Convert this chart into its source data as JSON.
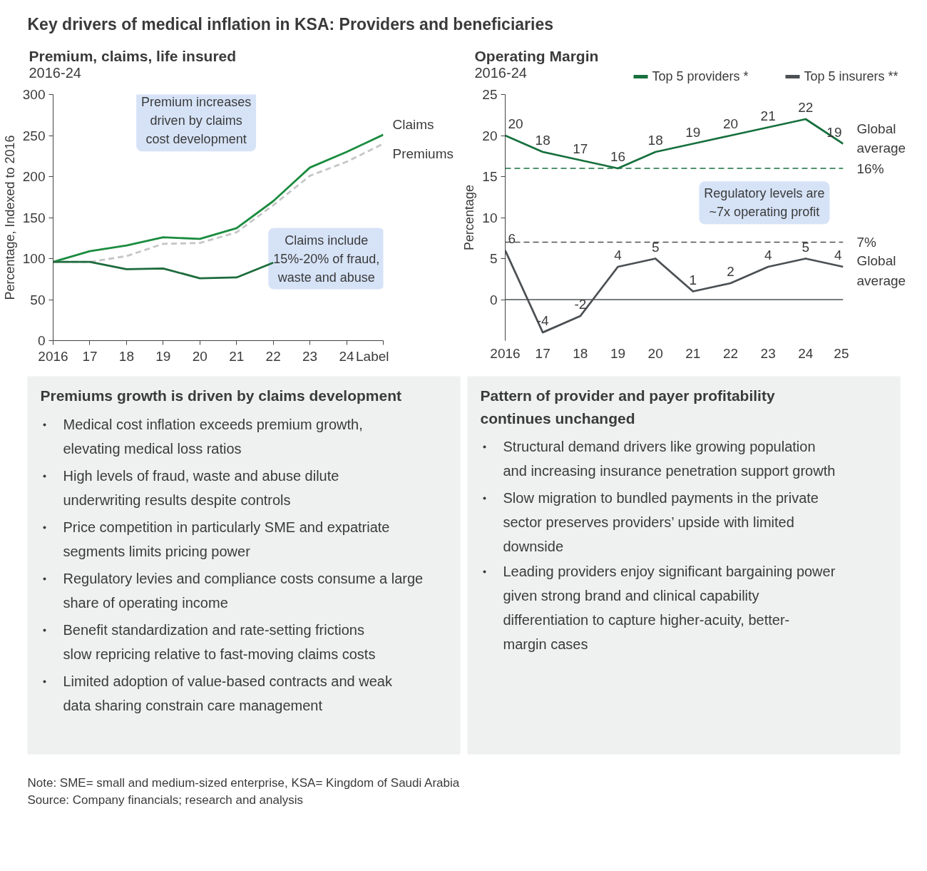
{
  "chart_data": [
    {
      "type": "other",
      "title": "Key drivers of medical inflation in KSA: Providers and beneficiaries"
    },
    {
      "type": "line",
      "title": "Premium, claims, life insured",
      "subtitle": "2016-24",
      "ylabel": "Percentage, Indexed to 2016",
      "x": [
        2016,
        2017,
        2018,
        2019,
        2020,
        2021,
        2022,
        2023,
        2024,
        2025
      ],
      "xlim": [
        2016,
        2025
      ],
      "xticks": [
        {
          "value": 2016,
          "label": "2016"
        },
        {
          "value": 2017,
          "label": "17"
        },
        {
          "value": 2018,
          "label": "18"
        },
        {
          "value": 2019,
          "label": "19"
        },
        {
          "value": 2020,
          "label": "20"
        },
        {
          "value": 2021,
          "label": "21"
        },
        {
          "value": 2022,
          "label": "22"
        },
        {
          "value": 2023,
          "label": "23"
        },
        {
          "value": 2024,
          "label": "24"
        },
        {
          "value": 2025,
          "label": "Label"
        }
      ],
      "ylim": [
        0,
        300
      ],
      "yticks": [
        0,
        50,
        100,
        150,
        200,
        250,
        300
      ],
      "series": [
        {
          "name": "Claims",
          "color": "#1a8c3f",
          "values": [
            96,
            109,
            116,
            126,
            124,
            137,
            170,
            211,
            230,
            251
          ]
        },
        {
          "name": "Premiums",
          "color": "#c6c6c6",
          "line_style": "dashed",
          "values": [
            96,
            96,
            103,
            118,
            119,
            132,
            165,
            201,
            218,
            240
          ]
        },
        {
          "color": "#1d6b3c",
          "values": [
            96,
            96,
            87,
            88,
            76,
            77,
            95,
            null,
            null,
            null
          ]
        }
      ],
      "annotations": [
        "Premium increases driven by claims cost development",
        "Claims include 15%-20% of fraud, waste and abuse"
      ],
      "grid": false
    },
    {
      "type": "line",
      "title": "Operating Margin",
      "subtitle": "2016-24",
      "ylabel": "Percentage",
      "x": [
        2016,
        2017,
        2018,
        2019,
        2020,
        2021,
        2022,
        2023,
        2024,
        2025
      ],
      "xlim": [
        2016,
        2025
      ],
      "xticks": [
        {
          "value": 2016,
          "label": "2016"
        },
        {
          "value": 2017,
          "label": "17"
        },
        {
          "value": 2018,
          "label": "18"
        },
        {
          "value": 2019,
          "label": "19"
        },
        {
          "value": 2020,
          "label": "20"
        },
        {
          "value": 2021,
          "label": "21"
        },
        {
          "value": 2022,
          "label": "22"
        },
        {
          "value": 2023,
          "label": "23"
        },
        {
          "value": 2024,
          "label": "24"
        },
        {
          "value": 2025,
          "label": "25"
        }
      ],
      "ylim": [
        -5,
        25
      ],
      "yticks": [
        0,
        5,
        10,
        15,
        20,
        25
      ],
      "series": [
        {
          "name": "Top 5 providers *",
          "color": "#17703d",
          "values": [
            20,
            18,
            17,
            16,
            18,
            19,
            20,
            21,
            22,
            19
          ]
        },
        {
          "name": "Top 5 insurers **",
          "color": "#4b5054",
          "values": [
            6,
            -4,
            -2,
            4,
            5,
            1,
            2,
            4,
            5,
            4
          ]
        }
      ],
      "data_labels": true,
      "legend": "top right",
      "grid": false,
      "ref_lines": [
        {
          "axis": "y",
          "value": 16,
          "label": "16%",
          "color": "#17703d",
          "line_style": "dashed"
        },
        {
          "axis": "y",
          "value": 7,
          "label": "7%",
          "color": "#4b5054",
          "line_style": "dashed"
        },
        {
          "axis": "y",
          "value": 0,
          "color": "#4b5054",
          "line_style": "solid"
        }
      ],
      "annotations": [
        "Global average",
        "Global average",
        "Regulatory levels are ~7x operating profit"
      ]
    },
    {
      "type": "other",
      "title": "Premiums growth is driven by claims development",
      "annotations": [
        "Medical cost inflation exceeds premium growth, elevating medical loss ratios",
        "High levels of fraud, waste and abuse dilute underwriting results despite controls",
        "Price competition in particularly SME and expatriate segments limits pricing power",
        "Regulatory levies and compliance costs consume a large share of operating income",
        "Benefit standardization and rate-setting frictions slow repricing relative to fast-moving claims costs",
        "Limited adoption of value-based contracts and weak data sharing constrain care management"
      ]
    },
    {
      "type": "other",
      "title": "Pattern of provider and payer profitability continues unchanged",
      "annotations": [
        "Structural demand drivers like growing population and increasing insurance penetration support growth",
        "Slow migration to bundled payments in the private sector preserves providers’ upside with limited downside",
        "Leading providers enjoy significant bargaining power given strong brand and clinical capability differentiation to capture higher-acuity, better-margin cases"
      ]
    },
    {
      "type": "other",
      "annotations": [
        "Note: SME= small and medium-sized enterprise, KSA= Kingdom of Saudi Arabia",
        "Source: Company financials; research and analysis"
      ]
    }
  ]
}
